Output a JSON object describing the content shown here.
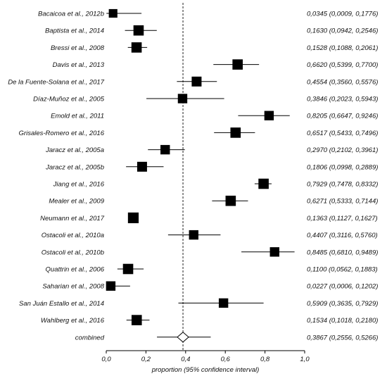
{
  "chart_data": {
    "type": "forest",
    "xlabel": "proportion (95% confidence interval)",
    "xlim": [
      0,
      1
    ],
    "xticks": [
      0,
      0.2,
      0.4,
      0.6,
      0.8,
      1
    ],
    "xtick_labels": [
      "0,0",
      "0,2",
      "0,4",
      "0,6",
      "0,8",
      "1,0"
    ],
    "reference_line": 0.3867,
    "studies": [
      {
        "name": "Bacaicoa et al., 2012b",
        "estimate": 0.0345,
        "lower": 0.0009,
        "upper": 0.1776,
        "ci_text": "0,0345 (0,0009, 0,1776)"
      },
      {
        "name": "Baptista et al., 2014",
        "estimate": 0.163,
        "lower": 0.0942,
        "upper": 0.2546,
        "ci_text": "0,1630 (0,0942, 0,2546)"
      },
      {
        "name": "Bressi et al., 2008",
        "estimate": 0.1528,
        "lower": 0.1088,
        "upper": 0.2061,
        "ci_text": "0,1528 (0,1088, 0,2061)"
      },
      {
        "name": "Davis et al., 2013",
        "estimate": 0.662,
        "lower": 0.5399,
        "upper": 0.77,
        "ci_text": "0,6620 (0,5399, 0,7700)"
      },
      {
        "name": "De la Fuente-Solana et al., 2017",
        "estimate": 0.4554,
        "lower": 0.356,
        "upper": 0.5576,
        "ci_text": "0,4554 (0,3560, 0,5576)"
      },
      {
        "name": "Díaz-Muñoz et al., 2005",
        "estimate": 0.3846,
        "lower": 0.2023,
        "upper": 0.5943,
        "ci_text": "0,3846 (0,2023, 0,5943)"
      },
      {
        "name": "Emold et al., 2011",
        "estimate": 0.8205,
        "lower": 0.6647,
        "upper": 0.9246,
        "ci_text": "0,8205 (0,6647, 0,9246)"
      },
      {
        "name": "Grisales-Romero et al., 2016",
        "estimate": 0.6517,
        "lower": 0.5433,
        "upper": 0.7496,
        "ci_text": "0,6517 (0,5433, 0,7496)"
      },
      {
        "name": "Jaracz et al., 2005a",
        "estimate": 0.297,
        "lower": 0.2102,
        "upper": 0.3961,
        "ci_text": "0,2970 (0,2102, 0,3961)"
      },
      {
        "name": "Jaracz et al., 2005b",
        "estimate": 0.1806,
        "lower": 0.0998,
        "upper": 0.2889,
        "ci_text": "0,1806 (0,0998, 0,2889)"
      },
      {
        "name": "Jiang et al., 2016",
        "estimate": 0.7929,
        "lower": 0.7478,
        "upper": 0.8332,
        "ci_text": "0,7929 (0,7478, 0,8332)"
      },
      {
        "name": "Mealer et al., 2009",
        "estimate": 0.6271,
        "lower": 0.5333,
        "upper": 0.7144,
        "ci_text": "0,6271 (0,5333, 0,7144)"
      },
      {
        "name": "Neumann et al., 2017",
        "estimate": 0.1363,
        "lower": 0.1127,
        "upper": 0.1627,
        "ci_text": "0,1363 (0,1127, 0,1627)"
      },
      {
        "name": "Ostacoli et al., 2010a",
        "estimate": 0.4407,
        "lower": 0.3116,
        "upper": 0.576,
        "ci_text": "0,4407 (0,3116, 0,5760)"
      },
      {
        "name": "Ostacoli et al., 2010b",
        "estimate": 0.8485,
        "lower": 0.681,
        "upper": 0.9489,
        "ci_text": "0,8485 (0,6810, 0,9489)"
      },
      {
        "name": "Quattrin et al., 2006",
        "estimate": 0.11,
        "lower": 0.0562,
        "upper": 0.1883,
        "ci_text": "0,1100 (0,0562, 0,1883)"
      },
      {
        "name": "Saharian et al., 2008",
        "estimate": 0.0227,
        "lower": 0.0006,
        "upper": 0.1202,
        "ci_text": "0,0227 (0,0006, 0,1202)"
      },
      {
        "name": "San Juán Estallo et al., 2014",
        "estimate": 0.5909,
        "lower": 0.3635,
        "upper": 0.7929,
        "ci_text": "0,5909 (0,3635, 0,7929)"
      },
      {
        "name": "Wahlberg et al., 2016",
        "estimate": 0.1534,
        "lower": 0.1018,
        "upper": 0.218,
        "ci_text": "0,1534 (0,1018, 0,2180)"
      }
    ],
    "combined": {
      "name": "combined",
      "estimate": 0.3867,
      "lower": 0.2556,
      "upper": 0.5266,
      "ci_text": "0,3867 (0,2556, 0,5266)"
    },
    "box_weights": [
      0.35,
      0.55,
      0.55,
      0.55,
      0.5,
      0.45,
      0.45,
      0.55,
      0.45,
      0.5,
      0.55,
      0.55,
      0.6,
      0.45,
      0.45,
      0.55,
      0.45,
      0.45,
      0.55
    ]
  }
}
